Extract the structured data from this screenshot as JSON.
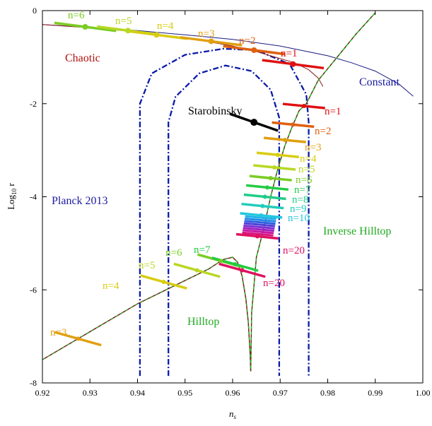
{
  "chart_data": {
    "type": "scatter",
    "title": "",
    "xlabel": "n",
    "xlabel_sub": "s",
    "ylabel": "Log",
    "ylabel_sub": "10",
    "ylabel_tail": " r",
    "xlim": [
      0.92,
      1.0
    ],
    "ylim": [
      -8,
      0
    ],
    "xticks": [
      "0.92",
      "0.93",
      "0.94",
      "0.95",
      "0.96",
      "0.97",
      "0.98",
      "0.99",
      "1.00"
    ],
    "yticks": [
      "-8",
      "-6",
      "-4",
      "-2",
      "0"
    ],
    "grid": false,
    "legend": "none",
    "regions": {
      "planck_1sigma": [
        [
          0.9465,
          -7.85
        ],
        [
          0.9465,
          -2.4
        ],
        [
          0.948,
          -1.85
        ],
        [
          0.953,
          -1.35
        ],
        [
          0.9585,
          -1.18
        ],
        [
          0.964,
          -1.3
        ],
        [
          0.968,
          -1.7
        ],
        [
          0.9698,
          -2.3
        ],
        [
          0.9698,
          -7.85
        ]
      ],
      "planck_2sigma": [
        [
          0.9405,
          -7.85
        ],
        [
          0.9405,
          -2.0
        ],
        [
          0.943,
          -1.35
        ],
        [
          0.95,
          -0.95
        ],
        [
          0.958,
          -0.82
        ],
        [
          0.965,
          -0.85
        ],
        [
          0.972,
          -1.15
        ],
        [
          0.9755,
          -1.8
        ],
        [
          0.976,
          -2.4
        ],
        [
          0.976,
          -7.85
        ]
      ]
    },
    "series": [
      {
        "name": "Constant",
        "curve": [
          [
            0.92,
            -0.3
          ],
          [
            0.93,
            -0.36
          ],
          [
            0.94,
            -0.43
          ],
          [
            0.95,
            -0.52
          ],
          [
            0.96,
            -0.62
          ],
          [
            0.97,
            -0.76
          ],
          [
            0.98,
            -0.97
          ],
          [
            0.985,
            -1.12
          ],
          [
            0.99,
            -1.3
          ],
          [
            0.995,
            -1.58
          ],
          [
            0.998,
            -1.84
          ]
        ],
        "color": "#1a1a80"
      },
      {
        "name": "Chaotic",
        "curve": [
          [
            0.92,
            -0.3
          ],
          [
            0.93,
            -0.37
          ],
          [
            0.94,
            -0.46
          ],
          [
            0.95,
            -0.58
          ],
          [
            0.96,
            -0.76
          ],
          [
            0.965,
            -0.88
          ],
          [
            0.97,
            -1.03
          ],
          [
            0.973,
            -1.12
          ],
          [
            0.976,
            -1.27
          ],
          [
            0.978,
            -1.45
          ],
          [
            0.979,
            -1.63
          ]
        ],
        "color": "#8b1a1a",
        "points": [
          {
            "n": "n=6",
            "x": 0.929,
            "y": -0.35
          },
          {
            "n": "n=5",
            "x": 0.938,
            "y": -0.43
          },
          {
            "n": "n=4",
            "x": 0.944,
            "y": -0.52
          },
          {
            "n": "n=3",
            "x": 0.9555,
            "y": -0.66
          },
          {
            "n": "n=2",
            "x": 0.9645,
            "y": -0.85
          },
          {
            "n": "n=1",
            "x": 0.9727,
            "y": -1.15
          }
        ]
      },
      {
        "name": "Starobinsky",
        "color": "#000000",
        "points": [
          {
            "n": "",
            "x": 0.9645,
            "y": -2.4
          }
        ]
      },
      {
        "name": "Hilltop",
        "curve": [
          [
            0.92,
            -7.5
          ],
          [
            0.93,
            -6.9
          ],
          [
            0.94,
            -6.3
          ],
          [
            0.95,
            -5.8
          ],
          [
            0.955,
            -5.55
          ],
          [
            0.958,
            -5.35
          ],
          [
            0.96,
            -5.3
          ],
          [
            0.961,
            -5.4
          ],
          [
            0.962,
            -5.7
          ],
          [
            0.9628,
            -6.2
          ],
          [
            0.9633,
            -6.7
          ],
          [
            0.9637,
            -7.4
          ],
          [
            0.9638,
            -7.75
          ]
        ],
        "color": "#7a1a1a",
        "points": [
          {
            "n": "n=3",
            "x": 0.9275,
            "y": -7.05
          },
          {
            "n": "n=4",
            "x": 0.9455,
            "y": -5.83
          },
          {
            "n": "n=5",
            "x": 0.9525,
            "y": -5.58
          },
          {
            "n": "n=6",
            "x": 0.9575,
            "y": -5.38
          },
          {
            "n": "n=7",
            "x": 0.9605,
            "y": -5.45
          },
          {
            "n": "n=20",
            "x": 0.962,
            "y": -5.58
          }
        ]
      },
      {
        "name": "Inverse Hilltop",
        "curve": [
          [
            0.9638,
            -7.75
          ],
          [
            0.964,
            -6.5
          ],
          [
            0.965,
            -5.3
          ],
          [
            0.9665,
            -4.7
          ],
          [
            0.968,
            -4.0
          ],
          [
            0.9695,
            -3.4
          ],
          [
            0.971,
            -2.9
          ],
          [
            0.9725,
            -2.5
          ],
          [
            0.974,
            -2.15
          ],
          [
            0.9755,
            -2.0
          ],
          [
            0.978,
            -1.5
          ],
          [
            0.982,
            -1.0
          ],
          [
            0.986,
            -0.5
          ],
          [
            0.99,
            -0.05
          ]
        ],
        "color": "#22b022",
        "points": [
          {
            "n": "n=1",
            "x": 0.975,
            "y": -2.05
          },
          {
            "n": "n=2",
            "x": 0.9727,
            "y": -2.45
          },
          {
            "n": "n=3",
            "x": 0.971,
            "y": -2.78
          },
          {
            "n": "n=4",
            "x": 0.9695,
            "y": -3.1
          },
          {
            "n": "n=5",
            "x": 0.9688,
            "y": -3.37
          },
          {
            "n": "n=6",
            "x": 0.968,
            "y": -3.6
          },
          {
            "n": "n=7",
            "x": 0.9673,
            "y": -3.8
          },
          {
            "n": "n=8",
            "x": 0.9668,
            "y": -4.0
          },
          {
            "n": "n=9",
            "x": 0.9663,
            "y": -4.2
          },
          {
            "n": "n=10",
            "x": 0.966,
            "y": -4.4
          },
          {
            "n": "n=20",
            "x": 0.9652,
            "y": -4.85
          }
        ]
      }
    ],
    "annotations": {
      "chaotic": "Chaotic",
      "constant": "Constant",
      "starobinsky": "Starobinsky",
      "planck": "Planck 2013",
      "hilltop": "Hilltop",
      "inverse_hilltop": "Inverse Hilltop",
      "inv_n1": "n=1",
      "inv_n2": "n=2",
      "inv_n3": "n=3",
      "inv_n4": "n=4",
      "inv_n5": "n=5",
      "inv_n6": "n=6",
      "inv_n7": "n=7",
      "inv_n8": "n=8",
      "inv_n9": "n=9",
      "inv_n10": "n=10",
      "inv_n20": "n=20",
      "hill_n3": "n=3",
      "hill_n4": "n=4",
      "hill_n5": "n=5",
      "hill_n6": "n=6",
      "hill_n7": "n=7",
      "hill_n20": "n=20",
      "ch_n1": "n=1",
      "ch_n2": "n=2",
      "ch_n3": "n=3",
      "ch_n4": "n=4",
      "ch_n5": "n=5",
      "ch_n6": "n=6"
    },
    "colors": {
      "frame": "#000000",
      "planck": "#0a1aa8",
      "label_chaotic": "#b01010",
      "label_constant": "#1a1aa0",
      "label_planck": "#1a1aa0",
      "label_hilltop": "#22aa22",
      "label_inverse": "#22aa22"
    }
  }
}
